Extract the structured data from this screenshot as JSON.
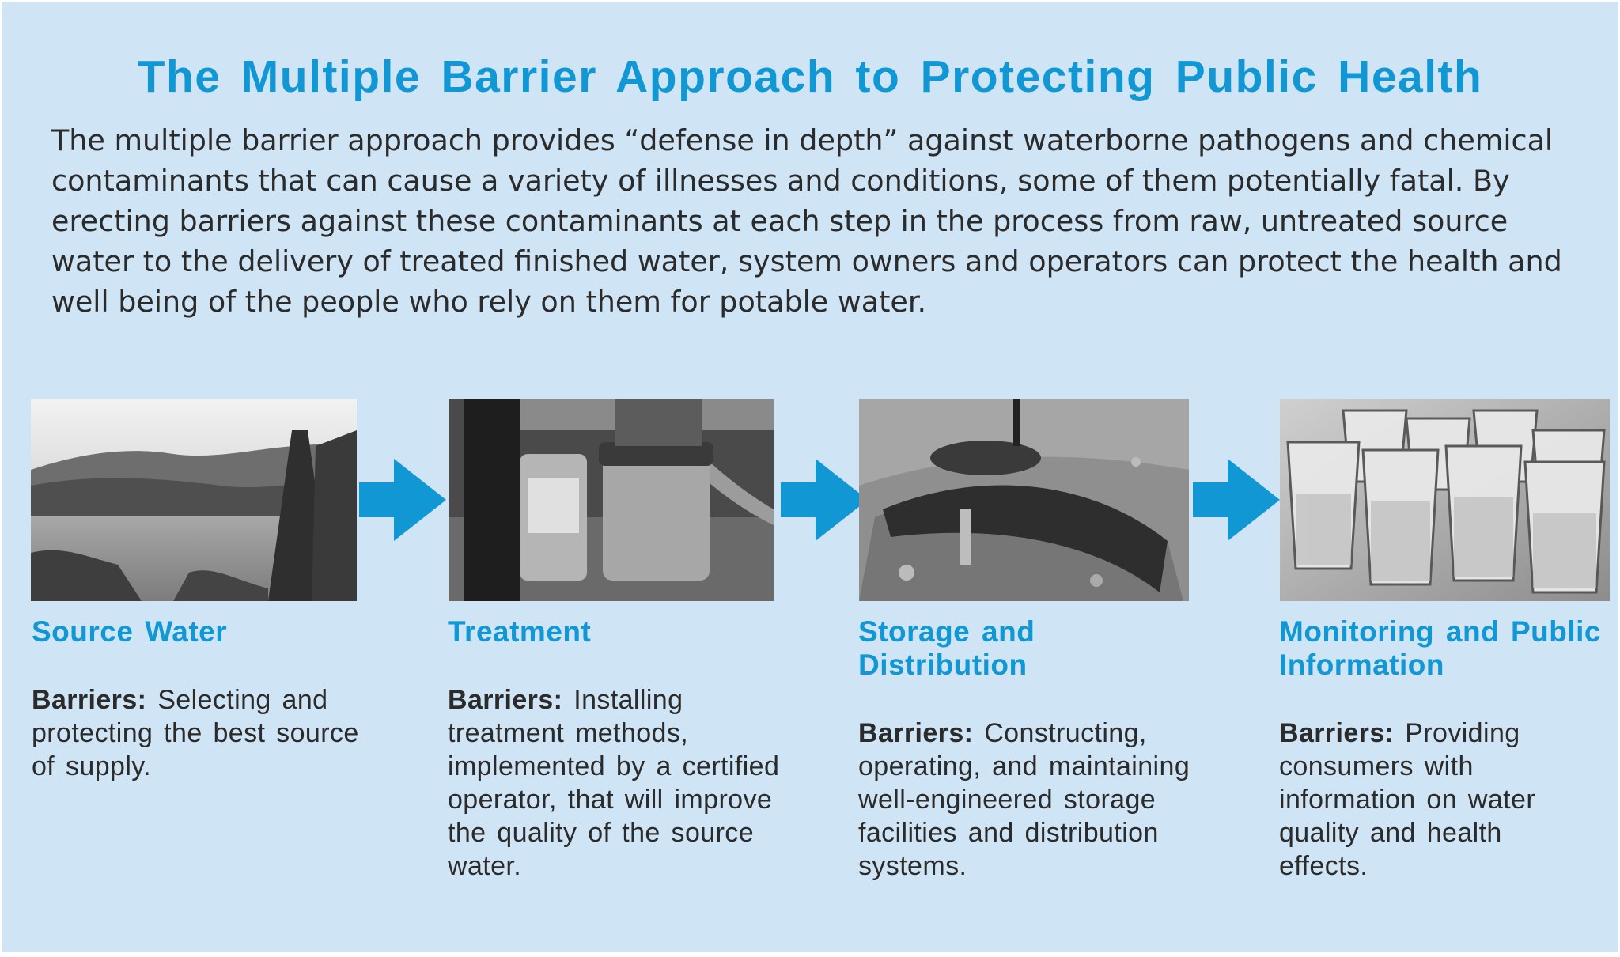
{
  "title": "The Multiple Barrier Approach to Protecting Public Health",
  "intro": "The multiple barrier approach provides “defense in depth” against waterborne pathogens and chemical contaminants that can cause a variety of illnesses and conditions, some of them potentially fatal. By erecting barriers against these contaminants at each step in the process from raw, untreated source water to the delivery of treated finished water, system owners and operators can protect the health and well being of the people who rely on them for potable water.",
  "steps": [
    {
      "title": "Source Water",
      "barriers_label": "Barriers:",
      "description": "Selecting and protecting the best source of supply."
    },
    {
      "title": "Treatment",
      "barriers_label": "Barriers:",
      "description": "Installing treatment methods, implemented by a certified operator, that will improve the quality of the source water."
    },
    {
      "title": "Storage and Distribution",
      "barriers_label": "Barriers:",
      "description": "Constructing, operating, and maintaining well-engineered storage facilities and distribution systems."
    },
    {
      "title": "Monitoring and Public Information",
      "barriers_label": "Barriers:",
      "description": "Providing consumers with information on water quality and health effects."
    }
  ],
  "colors": {
    "background": "#cfe4f4",
    "accent": "#1197d4",
    "text": "#2b2b2b"
  },
  "icons": [
    "lake-photo",
    "filter-photo",
    "tank-photo",
    "water-glasses-photo",
    "right-arrow-icon"
  ]
}
